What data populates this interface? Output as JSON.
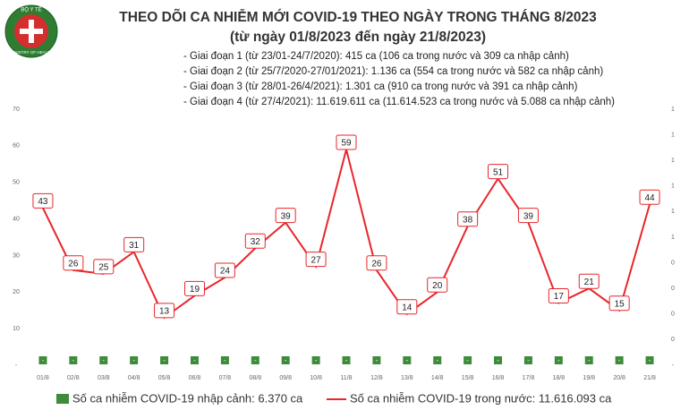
{
  "logo": {
    "top": "BỘ Y TẾ",
    "bottom": "MINISTRY OF HEALTH"
  },
  "chart_data": {
    "type": "bar-line",
    "title": "THEO DÕI CA NHIỄM MỚI COVID-19 THEO NGÀY TRONG THÁNG 8/2023",
    "subtitle": "(từ ngày 01/8/2023 đến ngày 21/8/2023)",
    "annotations": [
      "- Giai đoạn 1 (từ 23/01-24/7/2020): 415 ca (106 ca trong nước và 309 ca nhập cảnh)",
      "- Giai đoạn 2 (từ 25/7/2020-27/01/2021): 1.136 ca (554 ca trong nước và 582 ca nhập cảnh)",
      "- Giai đoạn 3 (từ 28/01-26/4/2021): 1.301 ca (910 ca trong nước và 391 ca nhập cảnh)",
      "- Giai đoạn 4 (từ 27/4/2021): 11.619.611 ca (11.614.523 ca trong nước và 5.088 ca nhập cảnh)"
    ],
    "categories": [
      "01/8",
      "02/8",
      "03/8",
      "04/8",
      "05/8",
      "06/8",
      "07/8",
      "08/8",
      "09/8",
      "10/8",
      "11/8",
      "12/8",
      "13/8",
      "14/8",
      "15/8",
      "16/8",
      "17/8",
      "18/8",
      "19/8",
      "20/8",
      "21/8"
    ],
    "series": [
      {
        "name": "Số ca nhiễm COVID-19 nhập cảnh: 6.370 ca",
        "type": "bar",
        "axis": "y2",
        "color": "#3c8c3c",
        "values": [
          0,
          0,
          0,
          0,
          0,
          0,
          0,
          0,
          0,
          0,
          0,
          0,
          0,
          0,
          0,
          0,
          0,
          0,
          0,
          0,
          0
        ],
        "value_labels": [
          "-",
          "-",
          "-",
          "-",
          "-",
          "-",
          "-",
          "-",
          "-",
          "-",
          "-",
          "-",
          "-",
          "-",
          "-",
          "-",
          "-",
          "-",
          "-",
          "-",
          "-"
        ]
      },
      {
        "name": "Số ca nhiễm COVID-19 trong nước: 11.616.093 ca",
        "type": "line",
        "color": "#e8262a",
        "values": [
          43,
          26,
          25,
          31,
          13,
          19,
          24,
          32,
          39,
          27,
          59,
          26,
          14,
          20,
          38,
          51,
          39,
          17,
          21,
          15,
          44
        ]
      }
    ],
    "ylim": [
      0,
      70
    ],
    "yticks": [
      {
        "value": 0,
        "label": "-"
      },
      10,
      20,
      30,
      40,
      50,
      60,
      70
    ],
    "y2lim": [
      0,
      1
    ],
    "y2ticks": [
      {
        "value": 0,
        "label": "-"
      },
      {
        "value": 0.1,
        "label": "0"
      },
      {
        "value": 0.2,
        "label": "0"
      },
      {
        "value": 0.3,
        "label": "0"
      },
      {
        "value": 0.4,
        "label": "0"
      },
      {
        "value": 0.5,
        "label": "1"
      },
      {
        "value": 0.6,
        "label": "1"
      },
      {
        "value": 0.7,
        "label": "1"
      },
      {
        "value": 0.8,
        "label": "1"
      },
      {
        "value": 0.9,
        "label": "1"
      },
      {
        "value": 1,
        "label": "1"
      }
    ]
  }
}
